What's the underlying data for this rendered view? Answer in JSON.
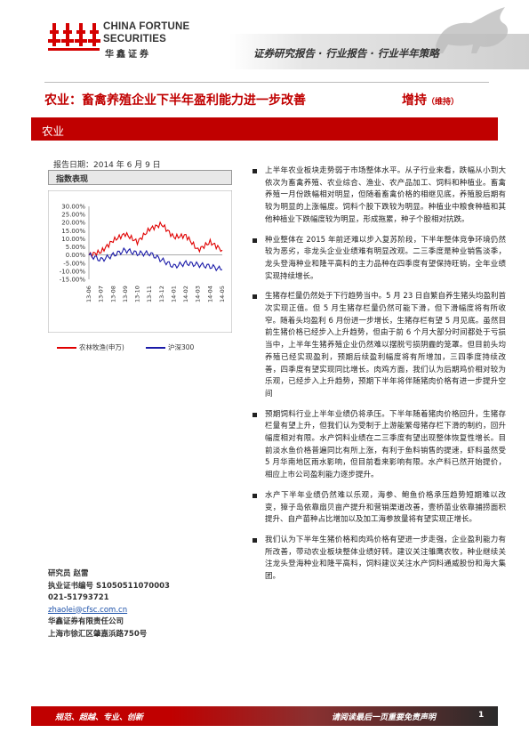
{
  "header": {
    "logo_en_line1": "CHINA FORTUNE",
    "logo_en_line2": "SECURITIES",
    "logo_cn": "华鑫证券",
    "report_type": "证券研究报告 · 行业报告 · 行业半年策略"
  },
  "title": {
    "headline": "农业：畜禽养殖企业下半年盈利能力进一步改善",
    "rating": "增持",
    "rating_note": "（维持）"
  },
  "sector": "农业",
  "report_date": "报告日期：2014 年 6 月 9 日",
  "index_title": "指数表现",
  "colors": {
    "accent": "#c00000",
    "series_agri": "#e00000",
    "series_hs300": "#1a1aa8"
  },
  "chart_data": {
    "type": "line",
    "x": [
      "13-06",
      "13-07",
      "13-08",
      "13-09",
      "13-10",
      "13-11",
      "13-12",
      "14-01",
      "14-02",
      "14-03",
      "14-04",
      "14-05"
    ],
    "ylim": [
      -15,
      30
    ],
    "yticks": [
      "30.00%",
      "25.00%",
      "20.00%",
      "15.00%",
      "10.00%",
      "5.00%",
      "0.00%",
      "-5.00%",
      "-10.00%",
      "-15.00%"
    ],
    "series": [
      {
        "name": "农林牧渔(申万)",
        "color": "#e00000",
        "values": [
          0,
          2,
          9,
          13,
          8,
          16,
          19,
          11,
          12,
          3,
          8,
          3
        ]
      },
      {
        "name": "沪深300",
        "color": "#1a1aa8",
        "values": [
          0,
          -3,
          0,
          3,
          1,
          1,
          -3,
          -7,
          -5,
          -6,
          -7,
          -9
        ]
      }
    ]
  },
  "bullets": [
    "上半年农业板块走势弱于市场整体水平。从子行业来看，跌幅从小到大依次为畜禽养殖、农业综合、渔业、农产品加工、饲料和种植业。畜禽养殖一月份跌幅相对明显，但随着畜禽价格的相继见底，养殖股后期有较为明显的上涨幅度。饲料个股下跌较为明显。种植业中粮食种植和其他种植业下跌幅度较为明显，形成拖累，种子个股相对抗跌。",
    "种业整体在 2015 年前还难以步入复苏阶段，下半年整体竞争环境仍然较为恶劣，非龙头企业业绩难有明显改观。二三季度是种业销售淡季，龙头登海种业和隆平高科的主力品种在四季度有望保持旺销，全年业绩实现持续增长。",
    "生猪存栏量仍然处于下行趋势当中。5 月 23 日自繁自养生猪头均盈利首次实现正值。但 5 月生猪存栏量仍然可能下滑，但下滑幅度将有所收窄。随着头均盈利 6 月份进一步增长，生猪存栏有望 5 月见底。虽然目前生猪价格已经步入上升趋势，但由于前 6 个月大部分时间都处于亏损当中，上半年生猪养殖企业仍然难以摆脱亏损阴霾的笼罩。但目前头均养殖已经实现盈利，预期后续盈利幅度将有所增加，三四季度持续改善，四季度有望实现同比增长。肉鸡方面，我们认为后期鸡价相对较为乐观，已经步入上升趋势，预期下半年将伴随猪肉价格有进一步提升空间",
    "预期饲料行业上半年业绩仍将承压。下半年随着猪肉价格回升，生猪存栏量有望上升，但我们认为受制于上游能繁母猪存栏下滑的制约，回升幅度相对有限。水产饲料业绩在二三季度有望出现整体恢复性增长。目前淡水鱼价格普遍同比有所上涨，有利于鱼料销售的提速，虾料虽然受 5 月华南地区雨水影响，但目前看来影响有限。水产料已然开始提价，相应上市公司盈利能力逐步提升。",
    "水产下半年业绩仍然难以乐观，海参、鲍鱼价格承压趋势短期难以改变，獐子岛依靠扇贝亩产提升和营销渠道改善，壹桥苗业依靠捕捞面积提升、自产苗种占比增加以及加工海参放量将有望实现正增长。",
    "我们认为下半年生猪价格和肉鸡价格有望进一步走强，企业盈利能力有所改善，带动农业板块整体业绩好转。建议关注雏鹰农牧，种业继续关注龙头登海种业和隆平高科，饲料建议关注水产饲料通威股份和海大集团。"
  ],
  "analyst": {
    "line1": "研究员    赵雷",
    "line2": "执业证书编号    S1050511070003",
    "line3": "021-51793721",
    "email": "zhaolei@cfsc.com.cn",
    "line5": "华鑫证券有限责任公司",
    "line6": "上海市徐汇区肇嘉浜路750号"
  },
  "footer": {
    "left": "规范、超越、专业、创新",
    "right": "请阅读最后一页重要免责声明",
    "page": "1"
  }
}
